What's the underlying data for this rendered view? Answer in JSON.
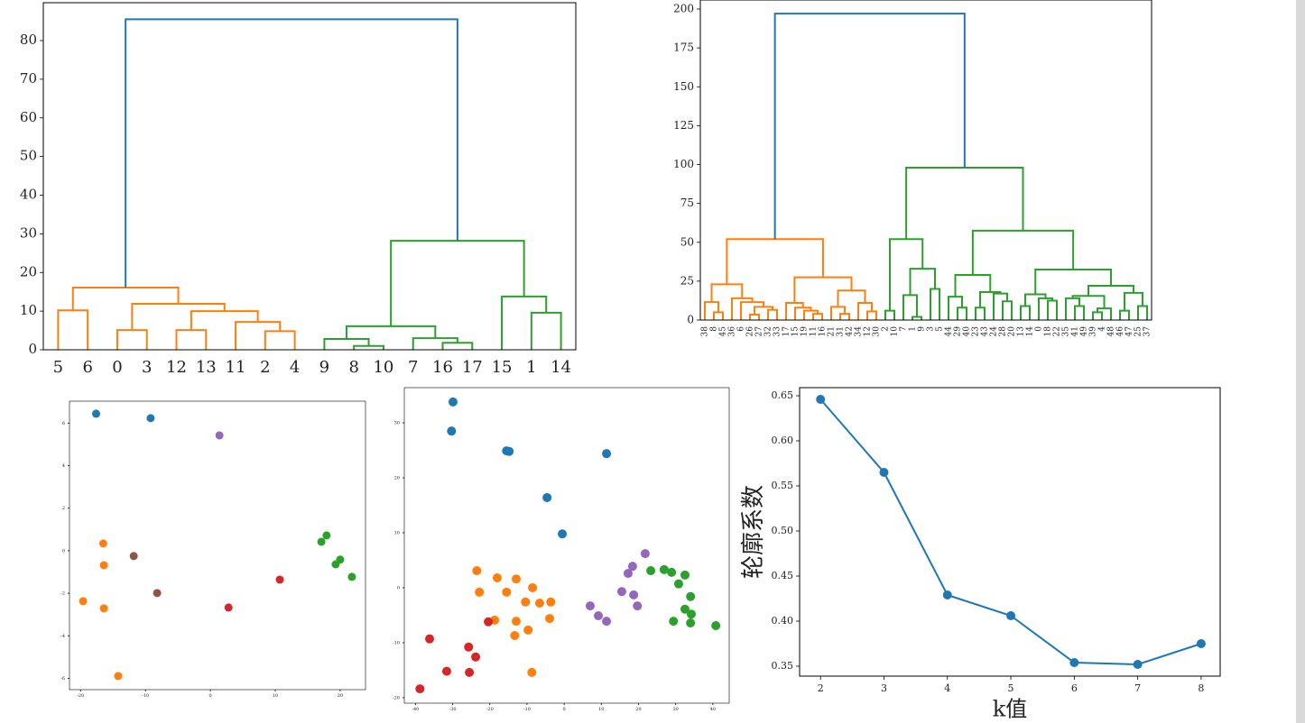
{
  "chart_data": [
    {
      "type": "dendrogram",
      "leaves": [
        "5",
        "6",
        "0",
        "3",
        "12",
        "13",
        "11",
        "2",
        "4",
        "9",
        "8",
        "10",
        "7",
        "16",
        "17",
        "15",
        "1",
        "14"
      ],
      "merges": [
        [
          0,
          1,
          10.2
        ],
        [
          2,
          3,
          5.1
        ],
        [
          4,
          5,
          5.1
        ],
        [
          7,
          8,
          4.8
        ],
        [
          6,
          21,
          7.2
        ],
        [
          20,
          22,
          10.0
        ],
        [
          19,
          23,
          11.9
        ],
        [
          18,
          24,
          16.1
        ],
        [
          10,
          11,
          1.0
        ],
        [
          9,
          26,
          2.8
        ],
        [
          13,
          14,
          1.8
        ],
        [
          12,
          28,
          3.0
        ],
        [
          27,
          29,
          6.1
        ],
        [
          16,
          17,
          9.6
        ],
        [
          15,
          31,
          13.8
        ],
        [
          30,
          32,
          28.2
        ],
        [
          25,
          33,
          85.5
        ]
      ],
      "link_colors": [
        "#ff7f0e",
        "#ff7f0e",
        "#ff7f0e",
        "#ff7f0e",
        "#ff7f0e",
        "#ff7f0e",
        "#ff7f0e",
        "#ff7f0e",
        "#2ca02c",
        "#2ca02c",
        "#2ca02c",
        "#2ca02c",
        "#2ca02c",
        "#2ca02c",
        "#2ca02c",
        "#2ca02c",
        "#1f77b4"
      ],
      "ylim": [
        0,
        89.8
      ],
      "yticks": [
        0,
        10,
        20,
        30,
        40,
        50,
        60,
        70,
        80
      ]
    },
    {
      "type": "dendrogram",
      "leaves": [
        "38",
        "8",
        "45",
        "36",
        "6",
        "26",
        "27",
        "32",
        "33",
        "17",
        "15",
        "19",
        "11",
        "16",
        "21",
        "31",
        "42",
        "34",
        "12",
        "30",
        "2",
        "10",
        "7",
        "1",
        "9",
        "3",
        "5",
        "44",
        "29",
        "40",
        "23",
        "43",
        "24",
        "28",
        "20",
        "13",
        "14",
        "0",
        "18",
        "22",
        "35",
        "41",
        "49",
        "39",
        "4",
        "48",
        "46",
        "47",
        "25",
        "37"
      ],
      "merges": [
        [
          1,
          2,
          5
        ],
        [
          0,
          50,
          11.5
        ],
        [
          5,
          6,
          3.5
        ],
        [
          7,
          8,
          6.5
        ],
        [
          52,
          53,
          8.5
        ],
        [
          4,
          54,
          11.5
        ],
        [
          3,
          55,
          14
        ],
        [
          51,
          56,
          23
        ],
        [
          12,
          13,
          4
        ],
        [
          11,
          58,
          6
        ],
        [
          10,
          59,
          8
        ],
        [
          9,
          60,
          11
        ],
        [
          15,
          16,
          4
        ],
        [
          14,
          62,
          8.5
        ],
        [
          18,
          19,
          5.5
        ],
        [
          17,
          64,
          11
        ],
        [
          63,
          65,
          19
        ],
        [
          61,
          66,
          27.5
        ],
        [
          57,
          67,
          52
        ],
        [
          20,
          21,
          6
        ],
        [
          23,
          24,
          2
        ],
        [
          22,
          70,
          16
        ],
        [
          25,
          26,
          20
        ],
        [
          71,
          72,
          33
        ],
        [
          69,
          73,
          52
        ],
        [
          28,
          29,
          8
        ],
        [
          27,
          75,
          15
        ],
        [
          30,
          31,
          8
        ],
        [
          33,
          34,
          12
        ],
        [
          32,
          78,
          17
        ],
        [
          77,
          79,
          18
        ],
        [
          76,
          80,
          29
        ],
        [
          35,
          36,
          9
        ],
        [
          38,
          39,
          12.5
        ],
        [
          37,
          83,
          14
        ],
        [
          82,
          84,
          16.5
        ],
        [
          41,
          42,
          9
        ],
        [
          40,
          86,
          14
        ],
        [
          43,
          44,
          5
        ],
        [
          88,
          45,
          7.5
        ],
        [
          87,
          89,
          15.5
        ],
        [
          46,
          47,
          6
        ],
        [
          48,
          49,
          9
        ],
        [
          91,
          92,
          17.5
        ],
        [
          90,
          93,
          22
        ],
        [
          85,
          94,
          32.5
        ],
        [
          81,
          95,
          57.5
        ],
        [
          74,
          96,
          98
        ],
        [
          68,
          97,
          197
        ]
      ],
      "link_colors": [
        "#ff7f0e",
        "#ff7f0e",
        "#ff7f0e",
        "#ff7f0e",
        "#ff7f0e",
        "#ff7f0e",
        "#ff7f0e",
        "#ff7f0e",
        "#ff7f0e",
        "#ff7f0e",
        "#ff7f0e",
        "#ff7f0e",
        "#ff7f0e",
        "#ff7f0e",
        "#ff7f0e",
        "#ff7f0e",
        "#ff7f0e",
        "#ff7f0e",
        "#ff7f0e",
        "#2ca02c",
        "#2ca02c",
        "#2ca02c",
        "#2ca02c",
        "#2ca02c",
        "#2ca02c",
        "#2ca02c",
        "#2ca02c",
        "#2ca02c",
        "#2ca02c",
        "#2ca02c",
        "#2ca02c",
        "#2ca02c",
        "#2ca02c",
        "#2ca02c",
        "#2ca02c",
        "#2ca02c",
        "#2ca02c",
        "#2ca02c",
        "#2ca02c",
        "#2ca02c",
        "#2ca02c",
        "#2ca02c",
        "#2ca02c",
        "#2ca02c",
        "#2ca02c",
        "#2ca02c",
        "#2ca02c",
        "#2ca02c",
        "#1f77b4"
      ],
      "ylim": [
        0,
        205.8
      ],
      "yticks": [
        0,
        25,
        50,
        75,
        100,
        125,
        150,
        175,
        200
      ]
    },
    {
      "type": "scatter",
      "xlim": [
        -21.7,
        23.9
      ],
      "ylim": [
        -6.53,
        7.03
      ],
      "xticks": [
        -20,
        -10,
        0,
        10,
        20
      ],
      "yticks": [
        -6,
        -4,
        -2,
        0,
        2,
        4,
        6
      ],
      "series": [
        {
          "color": "#1f77b4",
          "x": [
            -17.6,
            -9.2
          ],
          "y": [
            6.44,
            6.23
          ]
        },
        {
          "color": "#ff7f0e",
          "x": [
            -16.5,
            -16.4,
            -19.6,
            -16.4,
            -14.2
          ],
          "y": [
            0.34,
            -0.68,
            -2.37,
            -2.71,
            -5.89
          ]
        },
        {
          "color": "#2ca02c",
          "x": [
            17.1,
            17.9,
            20.0,
            19.3,
            21.8
          ],
          "y": [
            0.42,
            0.72,
            -0.42,
            -0.64,
            -1.23
          ]
        },
        {
          "color": "#d62728",
          "x": [
            2.8,
            10.7
          ],
          "y": [
            -2.67,
            -1.36
          ]
        },
        {
          "color": "#9467bd",
          "x": [
            1.4
          ],
          "y": [
            5.42
          ]
        },
        {
          "color": "#8c564b",
          "x": [
            -11.8,
            -8.2
          ],
          "y": [
            -0.25,
            -1.99
          ]
        }
      ]
    },
    {
      "type": "scatter",
      "xlim": [
        -43,
        44.4
      ],
      "ylim": [
        -21.0,
        36.4
      ],
      "xticks": [
        -40,
        -30,
        -20,
        -10,
        0,
        10,
        20,
        30,
        40
      ],
      "yticks": [
        -20,
        -10,
        0,
        10,
        20,
        30
      ],
      "series": [
        {
          "color": "#1f77b4",
          "x": [
            -29.9,
            -30.3,
            -15.5,
            -14.8,
            11.4,
            -4.6,
            -0.5
          ],
          "y": [
            33.8,
            28.5,
            24.9,
            24.8,
            24.4,
            16.4,
            9.8
          ]
        },
        {
          "color": "#ff7f0e",
          "x": [
            -23.5,
            -22.8,
            -18.0,
            -15.5,
            -12.9,
            -8.5,
            -18.7,
            -12.9,
            -10.4,
            -6.6,
            -3.6,
            -3.9,
            -13.3,
            -9.7,
            -8.7
          ],
          "y": [
            3.1,
            -0.8,
            1.8,
            -0.8,
            1.6,
            0,
            -5.9,
            -6.1,
            -2.6,
            -2.8,
            -2.6,
            -5.6,
            -8.7,
            -7.7,
            -15.4
          ]
        },
        {
          "color": "#2ca02c",
          "x": [
            23.3,
            26.9,
            28.9,
            32.5,
            30.8,
            34.0,
            32.5,
            34.2,
            29.4,
            34.0,
            40.8
          ],
          "y": [
            3.1,
            3.3,
            2.8,
            2.3,
            0.7,
            -1.6,
            -3.9,
            -4.8,
            -6.1,
            -6.4,
            -6.9
          ]
        },
        {
          "color": "#d62728",
          "x": [
            -20.4,
            -36.2,
            -25.7,
            -23.8,
            -31.6,
            -25.5,
            -38.8
          ],
          "y": [
            -6.2,
            -9.3,
            -10.8,
            -12.6,
            -15.2,
            -15.4,
            -18.4
          ]
        },
        {
          "color": "#9467bd",
          "x": [
            21.8,
            18.4,
            17.2,
            7.0,
            9.2,
            11.4,
            15.5,
            18.7,
            19.7
          ],
          "y": [
            6.2,
            3.9,
            2.6,
            -3.3,
            -5.1,
            -6.1,
            -0.7,
            -1.3,
            -3.3
          ]
        }
      ]
    },
    {
      "type": "line",
      "x_label": "k值",
      "y_label": "轮廓系数",
      "x": [
        2,
        3,
        4,
        5,
        6,
        7,
        8
      ],
      "series": [
        {
          "color": "#1f77b4",
          "values": [
            0.646,
            0.565,
            0.429,
            0.406,
            0.354,
            0.352,
            0.375
          ]
        }
      ],
      "xlim": [
        1.67,
        8.3
      ],
      "ylim": [
        0.339,
        0.659
      ],
      "xticks": [
        2,
        3,
        4,
        5,
        6,
        7,
        8
      ],
      "yticks": [
        0.35,
        {
          "value": 0.4,
          "label": "0.40"
        },
        0.45,
        {
          "value": 0.5,
          "label": "0.50"
        },
        0.55,
        {
          "value": 0.6,
          "label": "0.60"
        },
        0.65
      ]
    }
  ]
}
